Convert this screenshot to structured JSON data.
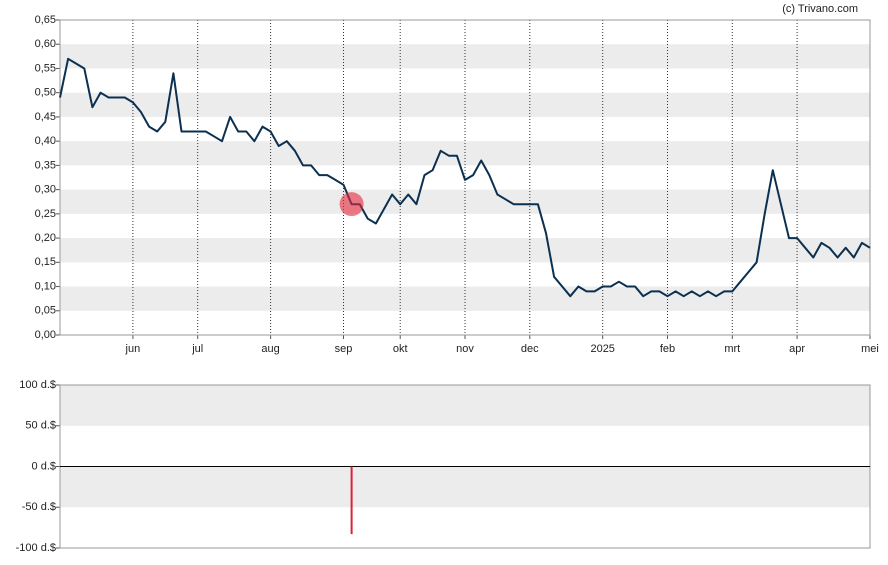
{
  "source": "(c) Trivano.com",
  "chart_data": [
    {
      "type": "line",
      "categories": [
        null,
        null,
        null,
        null,
        null,
        null,
        null,
        null,
        null,
        "jun",
        null,
        null,
        null,
        null,
        null,
        null,
        null,
        "jul",
        null,
        null,
        null,
        null,
        null,
        null,
        null,
        null,
        "aug",
        null,
        null,
        null,
        null,
        null,
        null,
        null,
        null,
        "sep",
        null,
        null,
        null,
        null,
        null,
        null,
        "okt",
        null,
        null,
        null,
        null,
        null,
        null,
        null,
        "nov",
        null,
        null,
        null,
        null,
        null,
        null,
        null,
        "dec",
        null,
        null,
        null,
        null,
        null,
        null,
        null,
        null,
        "2025",
        null,
        null,
        null,
        null,
        null,
        null,
        null,
        "feb",
        null,
        null,
        null,
        null,
        null,
        null,
        null,
        "mrt",
        null,
        null,
        null,
        null,
        null,
        null,
        null,
        "apr",
        null,
        null,
        null,
        null,
        null,
        null,
        null,
        null,
        "mei"
      ],
      "values": [
        0.49,
        0.57,
        0.56,
        0.55,
        0.47,
        0.5,
        0.49,
        0.49,
        0.49,
        0.48,
        0.46,
        0.43,
        0.42,
        0.44,
        0.54,
        0.42,
        0.42,
        0.42,
        0.42,
        0.41,
        0.4,
        0.45,
        0.42,
        0.42,
        0.4,
        0.43,
        0.42,
        0.39,
        0.4,
        0.38,
        0.35,
        0.35,
        0.33,
        0.33,
        0.32,
        0.31,
        0.27,
        0.27,
        0.24,
        0.23,
        0.26,
        0.29,
        0.27,
        0.29,
        0.27,
        0.33,
        0.34,
        0.38,
        0.37,
        0.37,
        0.32,
        0.33,
        0.36,
        0.33,
        0.29,
        0.28,
        0.27,
        0.27,
        0.27,
        0.27,
        0.21,
        0.12,
        0.1,
        0.08,
        0.1,
        0.09,
        0.09,
        0.1,
        0.1,
        0.11,
        0.1,
        0.1,
        0.08,
        0.09,
        0.09,
        0.08,
        0.09,
        0.08,
        0.09,
        0.08,
        0.09,
        0.08,
        0.09,
        0.09,
        0.11,
        0.13,
        0.15,
        0.25,
        0.34,
        0.27,
        0.2,
        0.2,
        0.18,
        0.16,
        0.19,
        0.18,
        0.16,
        0.18,
        0.16,
        0.19,
        0.18
      ],
      "color": "#0b3050",
      "ylim": [
        0,
        0.65
      ],
      "yticks": [
        {
          "value": 0,
          "label": "0,00"
        },
        {
          "value": 0.05,
          "label": "0,05"
        },
        {
          "value": 0.1,
          "label": "0,10"
        },
        {
          "value": 0.15,
          "label": "0,15"
        },
        {
          "value": 0.2,
          "label": "0,20"
        },
        {
          "value": 0.25,
          "label": "0,25"
        },
        {
          "value": 0.3,
          "label": "0,30"
        },
        {
          "value": 0.35,
          "label": "0,35"
        },
        {
          "value": 0.4,
          "label": "0,40"
        },
        {
          "value": 0.45,
          "label": "0,45"
        },
        {
          "value": 0.5,
          "label": "0,50"
        },
        {
          "value": 0.55,
          "label": "0,55"
        },
        {
          "value": 0.6,
          "label": "0,60"
        },
        {
          "value": 0.65,
          "label": "0,65"
        }
      ],
      "grid": true
    },
    {
      "type": "bar",
      "values": [
        null,
        null,
        null,
        null,
        null,
        null,
        null,
        null,
        null,
        null,
        null,
        null,
        null,
        null,
        null,
        null,
        null,
        null,
        null,
        null,
        null,
        null,
        null,
        null,
        null,
        null,
        null,
        null,
        null,
        null,
        null,
        null,
        null,
        null,
        null,
        null,
        -83,
        null,
        null,
        null,
        null,
        null,
        null,
        null,
        null,
        null,
        null,
        null,
        null,
        null,
        null,
        null,
        null,
        null,
        null,
        null,
        null,
        null,
        null,
        null,
        null,
        null,
        null,
        null,
        null,
        null,
        null,
        null,
        null,
        null,
        null,
        null,
        null,
        null,
        null,
        null,
        null,
        null,
        null,
        null,
        null,
        null,
        null,
        null,
        null,
        null,
        null,
        null,
        null,
        null,
        null,
        null,
        null,
        null,
        null,
        null,
        null,
        null,
        null,
        null,
        null
      ],
      "color": "#e0203a",
      "ylim": [
        -100,
        100
      ],
      "yticks": [
        {
          "value": -100,
          "label": "-100 d.$"
        },
        {
          "value": -50,
          "label": "-50 d.$"
        },
        {
          "value": 0,
          "label": "0 d.$"
        },
        {
          "value": 50,
          "label": "50 d.$"
        },
        {
          "value": 100,
          "label": "100 d.$"
        }
      ],
      "grid": true
    }
  ]
}
